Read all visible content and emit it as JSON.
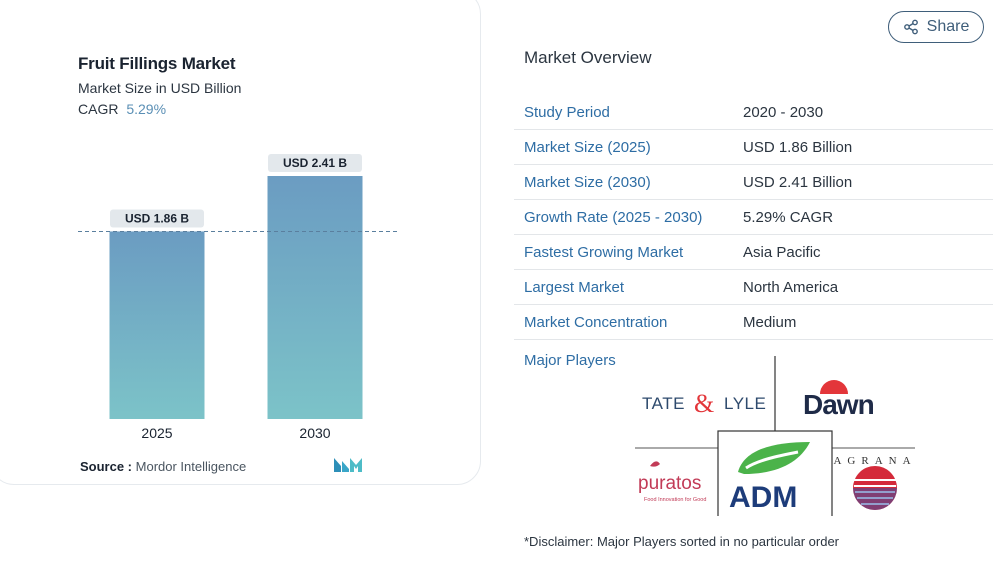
{
  "left_panel": {
    "title": "Fruit Fillings Market",
    "subtitle": "Market Size in USD Billion",
    "cagr_label": "CAGR",
    "cagr_value": "5.29%",
    "source_label": "Source :",
    "source_value": "Mordor Intelligence"
  },
  "chart_data": {
    "type": "bar",
    "title": "Fruit Fillings Market",
    "categories": [
      "2025",
      "2030"
    ],
    "values": [
      1.86,
      2.41
    ],
    "data_labels": [
      "USD 1.86 B",
      "USD 2.41 B"
    ],
    "xlabel": "",
    "ylabel": "",
    "ylim": [
      0,
      2.41
    ],
    "reference_line": 1.86,
    "grid": false,
    "bar_gradient": [
      "#6b9cc2",
      "#7cc3c8"
    ]
  },
  "share": {
    "label": "Share"
  },
  "overview": {
    "title": "Market Overview",
    "rows": [
      {
        "key": "Study Period",
        "value": "2020 - 2030"
      },
      {
        "key": "Market Size (2025)",
        "value": "USD 1.86 Billion"
      },
      {
        "key": "Market Size (2030)",
        "value": "USD 2.41 Billion"
      },
      {
        "key": "Growth Rate (2025 - 2030)",
        "value": "5.29% CAGR"
      },
      {
        "key": "Fastest Growing Market",
        "value": "Asia Pacific"
      },
      {
        "key": "Largest Market",
        "value": "North America"
      },
      {
        "key": "Market Concentration",
        "value": "Medium"
      }
    ],
    "major_players_label": "Major Players",
    "players": {
      "tate": "TATE & LYLE",
      "dawn": "Dawn",
      "puratos": "puratos",
      "puratos_tag": "Food Innovation for Good",
      "adm": "ADM",
      "agrana": "AGRANA"
    },
    "disclaimer": "*Disclaimer: Major Players sorted in no particular order"
  },
  "colors": {
    "accent": "#2e6da4",
    "bar_top": "#6b9cc2",
    "bar_bottom": "#7cc3c8",
    "label_bg": "#e3e8ec"
  }
}
